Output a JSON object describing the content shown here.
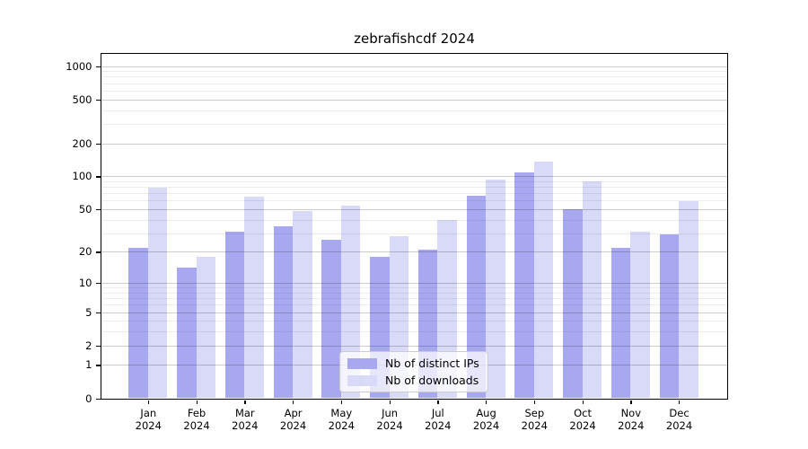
{
  "title": "zebrafishcdf 2024",
  "legend": {
    "items": [
      {
        "key": "distinct-ips",
        "label": "Nb of distinct IPs",
        "color": "#a8a8f0"
      },
      {
        "key": "downloads",
        "label": "Nb of downloads",
        "color": "#d9d9f8"
      }
    ]
  },
  "chart_data": {
    "type": "bar",
    "title": "zebrafishcdf 2024",
    "categories": [
      "Jan",
      "Feb",
      "Mar",
      "Apr",
      "May",
      "Jun",
      "Jul",
      "Aug",
      "Sep",
      "Oct",
      "Nov",
      "Dec"
    ],
    "year": "2024",
    "series": [
      {
        "name": "Nb of distinct IPs",
        "key": "distinct-ips",
        "color": "#a8a8f0",
        "values": [
          22,
          14,
          31,
          35,
          26,
          18,
          21,
          67,
          109,
          50,
          22,
          29
        ]
      },
      {
        "name": "Nb of downloads",
        "key": "downloads",
        "color": "#d9d9f8",
        "values": [
          79,
          18,
          65,
          48,
          54,
          28,
          40,
          93,
          137,
          90,
          31,
          59
        ]
      }
    ],
    "xlabel": "",
    "ylabel": "",
    "yscale": "log1p",
    "ylim": [
      0,
      1300
    ],
    "yticks": [
      0,
      1,
      2,
      5,
      10,
      20,
      50,
      100,
      200,
      500,
      1000
    ],
    "minor_yticks": [
      3,
      4,
      6,
      7,
      8,
      9,
      30,
      40,
      60,
      70,
      80,
      90,
      300,
      400,
      600,
      700,
      800,
      900
    ],
    "grid": true,
    "legend_position": "bottom-center"
  }
}
